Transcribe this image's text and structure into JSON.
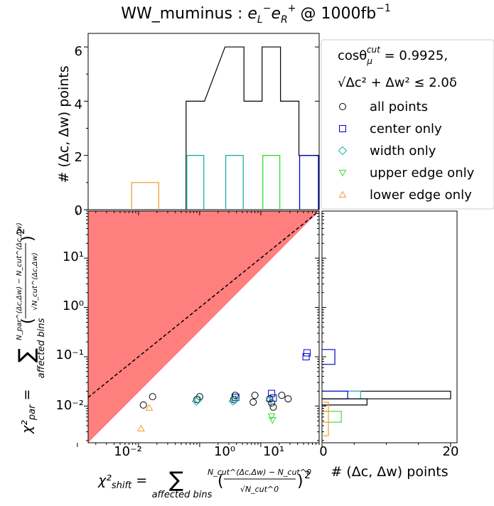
{
  "title_main": "WW_muminus : ",
  "title_beam": "e",
  "title_l_sub": "L",
  "title_minus": "−",
  "title_r_sub": "R",
  "title_plus": "+",
  "title_lumi": "@ 1000fb",
  "title_lumi_exp": "−1",
  "legend": {
    "cut_line1": "cosθ",
    "cut_line1_sub": "μ",
    "cut_line1_sup": "cut",
    "cut_line1_val": " = 0.9925,",
    "cut_line2": "√Δc² + Δw² ≤ 2.0δ",
    "entries": [
      {
        "label": "all points",
        "marker": "circle",
        "color": "#000000"
      },
      {
        "label": "center only",
        "marker": "square",
        "color": "#0000cc"
      },
      {
        "label": "width only",
        "marker": "diamond",
        "color": "#20b2aa"
      },
      {
        "label": "upper edge only",
        "marker": "triangle-down",
        "color": "#33dd33"
      },
      {
        "label": "lower edge only",
        "marker": "triangle-up",
        "color": "#f0a030"
      }
    ]
  },
  "axes": {
    "top_ylabel": "# (Δc, Δw) points",
    "right_xlabel": "# (Δc, Δw) points",
    "main_xlabel_lhs": "χ²",
    "main_xlabel_sub": "shift",
    "main_xlabel_eq": " = ",
    "main_xlabel_sum": "∑",
    "main_xlabel_sum_sub": "affected bins",
    "main_xlabel_num": "N_cut^(Δc,Δw) − N_cut^0",
    "main_xlabel_den": "√N_cut^0",
    "main_ylabel_lhs": "χ²",
    "main_ylabel_sub": "par",
    "main_ylabel_eq": " = ",
    "main_ylabel_sum": "∑",
    "main_ylabel_sum_sub": "affected bins",
    "main_ylabel_num": "N_par^(Δc,Δw) − N_cut^(Δc,Δw)",
    "main_ylabel_den": "√N_cut^(Δc,Δw)",
    "x_ticks": [
      "10⁻²",
      "10⁰",
      "10¹"
    ],
    "y_ticks": [
      "10⁻²",
      "10⁻¹",
      "10⁰",
      "10¹"
    ],
    "top_y_ticks": [
      "0",
      "2",
      "4",
      "6"
    ],
    "right_x_ticks": [
      "0",
      "20"
    ]
  },
  "chart_data": {
    "type": "scatter",
    "x_scale": "log",
    "y_scale": "log",
    "xlim": [
      0.015,
      90
    ],
    "ylim": [
      0.0018,
      90
    ],
    "shaded_region": "y > x",
    "diagonal": "y = x (dashed)",
    "series": [
      {
        "name": "all points",
        "marker": "circle",
        "color": "#000000",
        "x": [
          0.12,
          0.17,
          0.9,
          1.0,
          3.6,
          3.8,
          7.5,
          8.0,
          14.0,
          15.0,
          16.0,
          22.0,
          28.0
        ],
        "y": [
          0.0105,
          0.0155,
          0.0135,
          0.0155,
          0.0135,
          0.0165,
          0.012,
          0.0165,
          0.014,
          0.0115,
          0.0095,
          0.0165,
          0.014
        ]
      },
      {
        "name": "center only",
        "marker": "square",
        "color": "#0000cc",
        "x": [
          3.9,
          15.0,
          16.0,
          55.0,
          57.0
        ],
        "y": [
          0.015,
          0.018,
          0.0145,
          0.1,
          0.12
        ]
      },
      {
        "name": "width only",
        "marker": "diamond",
        "color": "#20b2aa",
        "x": [
          0.88,
          0.95,
          3.5,
          3.8,
          14.0
        ],
        "y": [
          0.0125,
          0.0135,
          0.0125,
          0.0135,
          0.013
        ]
      },
      {
        "name": "upper edge only",
        "marker": "triangle-down",
        "color": "#33dd33",
        "x": [
          15.0,
          15.5
        ],
        "y": [
          0.0062,
          0.0052
        ]
      },
      {
        "name": "lower edge only",
        "marker": "triangle-up",
        "color": "#f0a030",
        "x": [
          0.11,
          0.15
        ],
        "y": [
          0.0035,
          0.0092
        ]
      }
    ],
    "top_histogram": {
      "ylim": [
        0,
        6.5
      ],
      "bins": [
        {
          "x0": 0.075,
          "x1": 0.22,
          "all": 0,
          "orange": 1
        },
        {
          "x0": 0.6,
          "x1": 1.2,
          "all": 4,
          "teal": 2
        },
        {
          "x0": 2.6,
          "x1": 5.3,
          "all": 6,
          "teal": 2
        },
        {
          "x0": 5.3,
          "x1": 10.5,
          "all": 4
        },
        {
          "x0": 10.5,
          "x1": 21.0,
          "all": 6,
          "green": 2
        },
        {
          "x0": 21.0,
          "x1": 42.0,
          "all": 4
        },
        {
          "x0": 42.0,
          "x1": 90.0,
          "all": 2,
          "blue": 2
        }
      ]
    },
    "right_histogram": {
      "xlim": [
        0,
        21
      ],
      "bins": [
        {
          "y0": 0.014,
          "y1": 0.02,
          "all": 20,
          "blue": 4,
          "teal": 6
        },
        {
          "y0": 0.0105,
          "y1": 0.014,
          "all": 7
        },
        {
          "y0": 0.07,
          "y1": 0.14,
          "blue": 2
        },
        {
          "y0": 0.0078,
          "y1": 0.012,
          "orange": 1
        },
        {
          "y0": 0.0047,
          "y1": 0.0078,
          "green": 3,
          "orange": 1
        },
        {
          "y0": 0.0025,
          "y1": 0.0047,
          "orange": 1
        }
      ]
    }
  }
}
